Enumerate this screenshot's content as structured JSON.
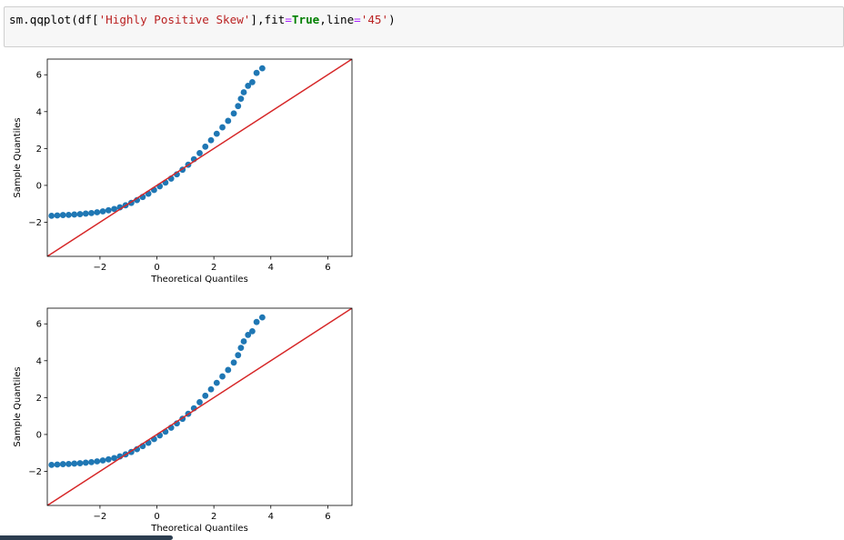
{
  "code_cell": {
    "tokens": [
      {
        "text": "sm.qqplot(df[",
        "cls": ""
      },
      {
        "text": "'Highly Positive Skew'",
        "cls": "tok-str"
      },
      {
        "text": "],fit",
        "cls": ""
      },
      {
        "text": "=",
        "cls": "tok-op"
      },
      {
        "text": "True",
        "cls": "tok-kw"
      },
      {
        "text": ",line",
        "cls": ""
      },
      {
        "text": "=",
        "cls": "tok-op"
      },
      {
        "text": "'45'",
        "cls": "tok-str"
      },
      {
        "text": ")",
        "cls": ""
      }
    ]
  },
  "colors": {
    "points": "#1f77b4",
    "line": "#d62728"
  },
  "chart_data": [
    {
      "type": "scatter",
      "title": "",
      "xlabel": "Theoretical Quantiles",
      "ylabel": "Sample Quantiles",
      "xlim": [
        -3.85,
        6.85
      ],
      "ylim": [
        -3.85,
        6.85
      ],
      "xticks": [
        -2,
        0,
        2,
        4,
        6
      ],
      "yticks": [
        -2,
        0,
        2,
        4,
        6
      ],
      "tick_labels_x": [
        "−2",
        "0",
        "2",
        "4",
        "6"
      ],
      "tick_labels_y": [
        "−2",
        "0",
        "2",
        "4",
        "6"
      ],
      "reference_line": {
        "type": "45-degree",
        "from": [
          -3.85,
          -3.85
        ],
        "to": [
          6.85,
          6.85
        ]
      },
      "points": [
        [
          -3.7,
          -1.65
        ],
        [
          -3.5,
          -1.63
        ],
        [
          -3.3,
          -1.61
        ],
        [
          -3.1,
          -1.6
        ],
        [
          -2.9,
          -1.58
        ],
        [
          -2.7,
          -1.56
        ],
        [
          -2.5,
          -1.53
        ],
        [
          -2.3,
          -1.5
        ],
        [
          -2.1,
          -1.46
        ],
        [
          -1.9,
          -1.41
        ],
        [
          -1.7,
          -1.35
        ],
        [
          -1.5,
          -1.28
        ],
        [
          -1.3,
          -1.19
        ],
        [
          -1.1,
          -1.08
        ],
        [
          -0.9,
          -0.95
        ],
        [
          -0.7,
          -0.8
        ],
        [
          -0.5,
          -0.63
        ],
        [
          -0.3,
          -0.45
        ],
        [
          -0.1,
          -0.25
        ],
        [
          0.1,
          -0.05
        ],
        [
          0.3,
          0.15
        ],
        [
          0.5,
          0.37
        ],
        [
          0.7,
          0.6
        ],
        [
          0.9,
          0.85
        ],
        [
          1.1,
          1.12
        ],
        [
          1.3,
          1.42
        ],
        [
          1.5,
          1.75
        ],
        [
          1.7,
          2.1
        ],
        [
          1.9,
          2.45
        ],
        [
          2.1,
          2.8
        ],
        [
          2.3,
          3.15
        ],
        [
          2.5,
          3.5
        ],
        [
          2.7,
          3.9
        ],
        [
          2.85,
          4.3
        ],
        [
          2.95,
          4.7
        ],
        [
          3.05,
          5.05
        ],
        [
          3.2,
          5.4
        ],
        [
          3.35,
          5.6
        ],
        [
          3.5,
          6.1
        ],
        [
          3.7,
          6.35
        ]
      ]
    },
    {
      "type": "scatter",
      "title": "",
      "xlabel": "Theoretical Quantiles",
      "ylabel": "Sample Quantiles",
      "xlim": [
        -3.85,
        6.85
      ],
      "ylim": [
        -3.85,
        6.85
      ],
      "xticks": [
        -2,
        0,
        2,
        4,
        6
      ],
      "yticks": [
        -2,
        0,
        2,
        4,
        6
      ],
      "tick_labels_x": [
        "−2",
        "0",
        "2",
        "4",
        "6"
      ],
      "tick_labels_y": [
        "−2",
        "0",
        "2",
        "4",
        "6"
      ],
      "reference_line": {
        "type": "45-degree",
        "from": [
          -3.85,
          -3.85
        ],
        "to": [
          6.85,
          6.85
        ]
      },
      "points": [
        [
          -3.7,
          -1.65
        ],
        [
          -3.5,
          -1.63
        ],
        [
          -3.3,
          -1.61
        ],
        [
          -3.1,
          -1.6
        ],
        [
          -2.9,
          -1.58
        ],
        [
          -2.7,
          -1.56
        ],
        [
          -2.5,
          -1.53
        ],
        [
          -2.3,
          -1.5
        ],
        [
          -2.1,
          -1.46
        ],
        [
          -1.9,
          -1.41
        ],
        [
          -1.7,
          -1.35
        ],
        [
          -1.5,
          -1.28
        ],
        [
          -1.3,
          -1.19
        ],
        [
          -1.1,
          -1.08
        ],
        [
          -0.9,
          -0.95
        ],
        [
          -0.7,
          -0.8
        ],
        [
          -0.5,
          -0.63
        ],
        [
          -0.3,
          -0.45
        ],
        [
          -0.1,
          -0.25
        ],
        [
          0.1,
          -0.05
        ],
        [
          0.3,
          0.15
        ],
        [
          0.5,
          0.37
        ],
        [
          0.7,
          0.6
        ],
        [
          0.9,
          0.85
        ],
        [
          1.1,
          1.12
        ],
        [
          1.3,
          1.42
        ],
        [
          1.5,
          1.75
        ],
        [
          1.7,
          2.1
        ],
        [
          1.9,
          2.45
        ],
        [
          2.1,
          2.8
        ],
        [
          2.3,
          3.15
        ],
        [
          2.5,
          3.5
        ],
        [
          2.7,
          3.9
        ],
        [
          2.85,
          4.3
        ],
        [
          2.95,
          4.7
        ],
        [
          3.05,
          5.05
        ],
        [
          3.2,
          5.4
        ],
        [
          3.35,
          5.6
        ],
        [
          3.5,
          6.1
        ],
        [
          3.7,
          6.35
        ]
      ]
    }
  ]
}
